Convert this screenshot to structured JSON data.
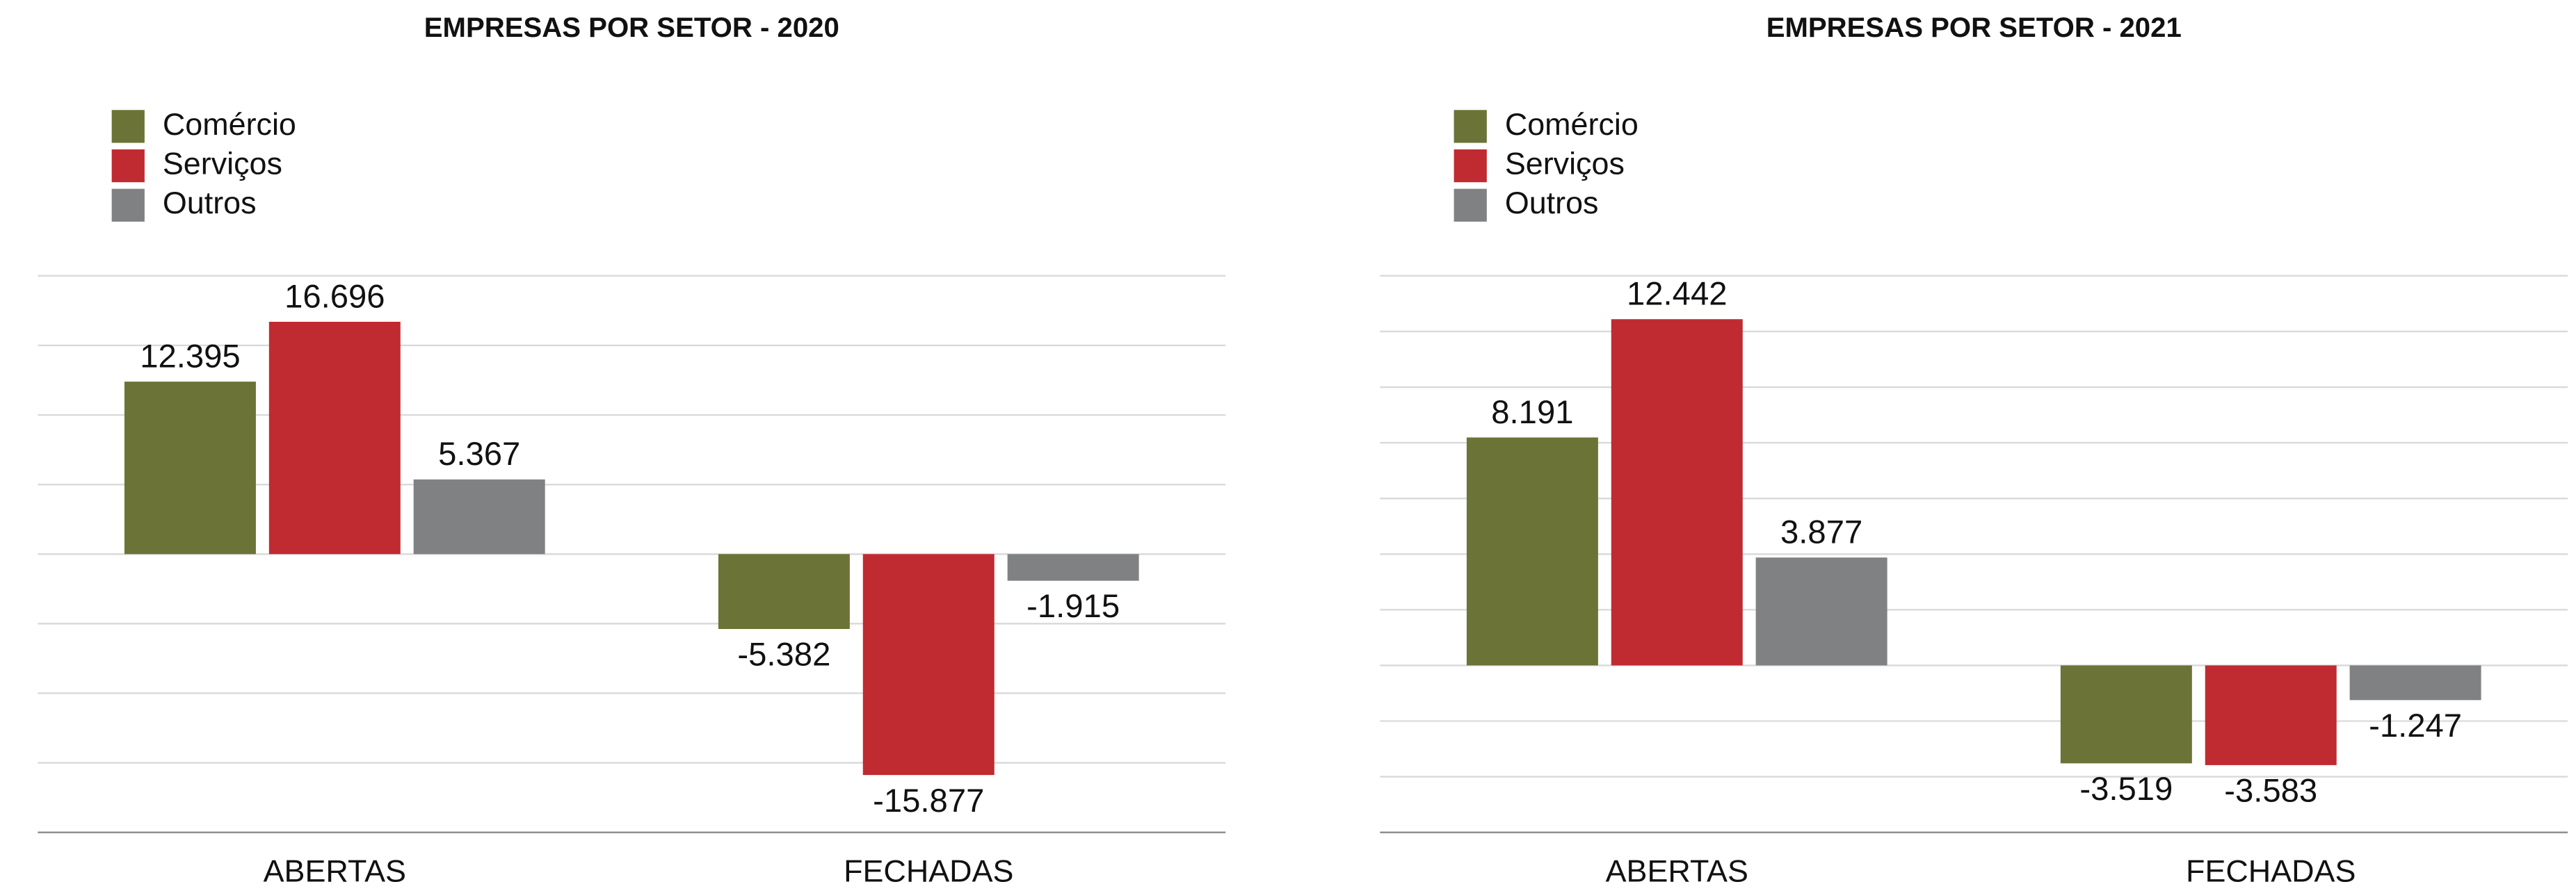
{
  "chart_data": [
    {
      "type": "bar",
      "title": "EMPRESAS POR SETOR - 2020",
      "categories": [
        "ABERTAS",
        "FECHADAS"
      ],
      "series": [
        {
          "name": "Comércio",
          "color": "#6b7337",
          "values": [
            12395,
            -5382
          ],
          "value_labels": [
            "12.395",
            "-5.382"
          ]
        },
        {
          "name": "Serviços",
          "color": "#bf2b31",
          "values": [
            16696,
            -15877
          ],
          "value_labels": [
            "16.696",
            "-15.877"
          ]
        },
        {
          "name": "Outros",
          "color": "#7f8183",
          "values": [
            5367,
            -1915
          ],
          "value_labels": [
            "5.367",
            "-1.915"
          ]
        }
      ],
      "ylim": [
        -20000,
        20000
      ],
      "yticks": [
        -20000,
        -15000,
        -10000,
        -5000,
        0,
        5000,
        10000,
        15000,
        20000
      ],
      "grid": true,
      "legend": "top-left"
    },
    {
      "type": "bar",
      "title": "EMPRESAS POR SETOR - 2021",
      "categories": [
        "ABERTAS",
        "FECHADAS"
      ],
      "series": [
        {
          "name": "Comércio",
          "color": "#6b7337",
          "values": [
            8191,
            -3519
          ],
          "value_labels": [
            "8.191",
            "-3.519"
          ]
        },
        {
          "name": "Serviços",
          "color": "#bf2b31",
          "values": [
            12442,
            -3583
          ],
          "value_labels": [
            "12.442",
            "-3.583"
          ]
        },
        {
          "name": "Outros",
          "color": "#7f8183",
          "values": [
            3877,
            -1247
          ],
          "value_labels": [
            "3.877",
            "-1.247"
          ]
        }
      ],
      "ylim": [
        -6000,
        14000
      ],
      "yticks": [
        -6000,
        -4000,
        -2000,
        0,
        2000,
        4000,
        6000,
        8000,
        10000,
        12000,
        14000
      ],
      "grid": true,
      "legend": "top-left"
    }
  ]
}
